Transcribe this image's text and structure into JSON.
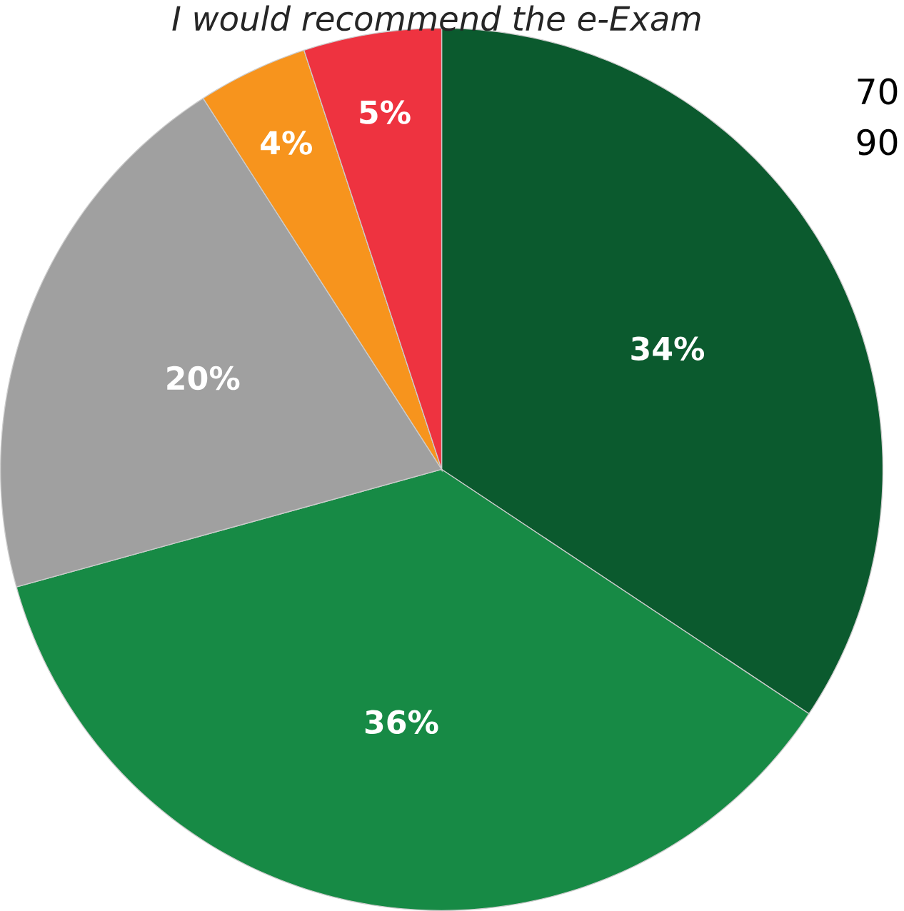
{
  "chart_data": {
    "type": "pie",
    "title": "I would recommend the e-Exam",
    "categories": [
      null,
      null,
      null,
      null,
      null
    ],
    "values": [
      34,
      36,
      20,
      4,
      5
    ],
    "colors": [
      "#0b5a2e",
      "#178a45",
      "#a0a0a0",
      "#f7941d",
      "#ee3340"
    ],
    "value_labels": [
      "34%",
      "36%",
      "20%",
      "4%",
      "5%"
    ],
    "annotations": [
      "70",
      "90"
    ]
  }
}
